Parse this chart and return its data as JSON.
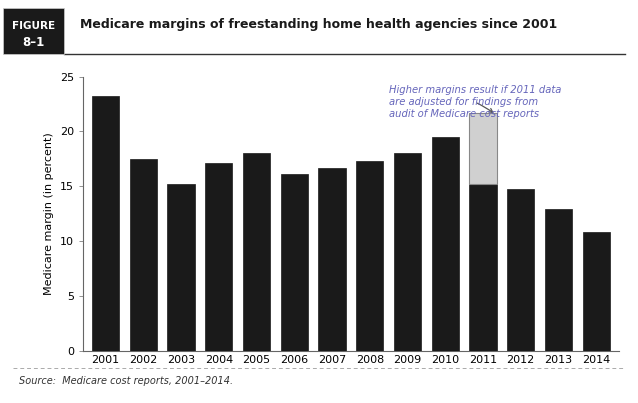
{
  "years": [
    2001,
    2002,
    2003,
    2004,
    2005,
    2006,
    2007,
    2008,
    2009,
    2010,
    2011,
    2012,
    2013,
    2014
  ],
  "values": [
    23.2,
    17.5,
    15.2,
    17.1,
    18.0,
    16.1,
    16.7,
    17.3,
    18.0,
    19.5,
    15.2,
    14.7,
    12.9,
    10.8
  ],
  "adjusted_2011": 21.7,
  "bar_color": "#1a1a1a",
  "adjusted_bar_color": "#d0d0d0",
  "adjusted_bar_edgecolor": "#888888",
  "title": "Medicare margins of freestanding home health agencies since 2001",
  "ylabel": "Medicare margin (in percent)",
  "ylim": [
    0,
    25
  ],
  "yticks": [
    0,
    5,
    10,
    15,
    20,
    25
  ],
  "figure_label_line1": "FIGURE",
  "figure_label_line2": "8–1",
  "source_text": "Source:  Medicare cost reports, 2001–2014.",
  "annotation_text": "Higher margins result if 2011 data\nare adjusted for findings from\naudit of Medicare cost reports",
  "annotation_color": "#6666bb",
  "background_color": "#ffffff",
  "fig_label_bg": "#1a1a1a",
  "fig_label_color": "#ffffff"
}
